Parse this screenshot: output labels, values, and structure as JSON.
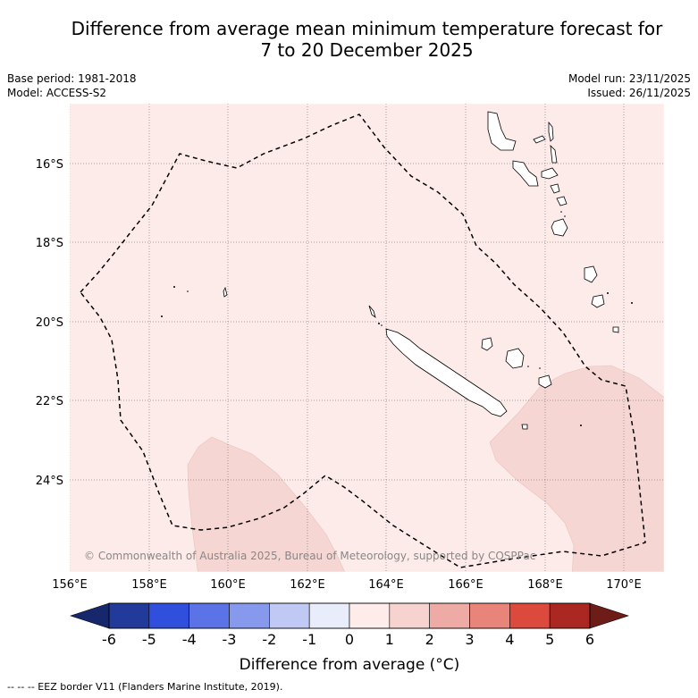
{
  "title": {
    "line1": "Difference from average mean minimum temperature forecast for",
    "line2": "7 to 20 December 2025"
  },
  "meta": {
    "base_period": "Base period: 1981-2018",
    "model": "Model: ACCESS-S2",
    "model_run": "Model run: 23/11/2025",
    "issued": "Issued: 26/11/2025"
  },
  "map": {
    "lat_labels": [
      "16°S",
      "18°S",
      "20°S",
      "22°S",
      "24°S"
    ],
    "lon_labels": [
      "156°E",
      "158°E",
      "160°E",
      "162°E",
      "164°E",
      "166°E",
      "168°E",
      "170°E"
    ],
    "copyright": "© Commonwealth of Australia 2025, Bureau of Meteorology, supported by COSPPac",
    "colors": {
      "background_anomaly": "#fcebe9",
      "warm_anomaly": "#f5d6d3",
      "land_outline": "#000000"
    }
  },
  "colorbar": {
    "tick_labels": [
      "-6",
      "-5",
      "-4",
      "-3",
      "-2",
      "-1",
      "0",
      "1",
      "2",
      "3",
      "4",
      "5",
      "6"
    ],
    "label": "Difference from average (°C)",
    "colors": [
      "#223a9a",
      "#2f4fdc",
      "#5b73e6",
      "#8699ec",
      "#c0c8f4",
      "#e9ecfb",
      "#fdecea",
      "#f6d3cf",
      "#eeaaa5",
      "#e88479",
      "#dc4a3e",
      "#ab2822"
    ],
    "extend_low": "#16286b",
    "extend_high": "#6e1c18"
  },
  "footer": {
    "legend": "--  --  -- EEZ border V11 (Flanders Marine Institute, 2019)."
  }
}
